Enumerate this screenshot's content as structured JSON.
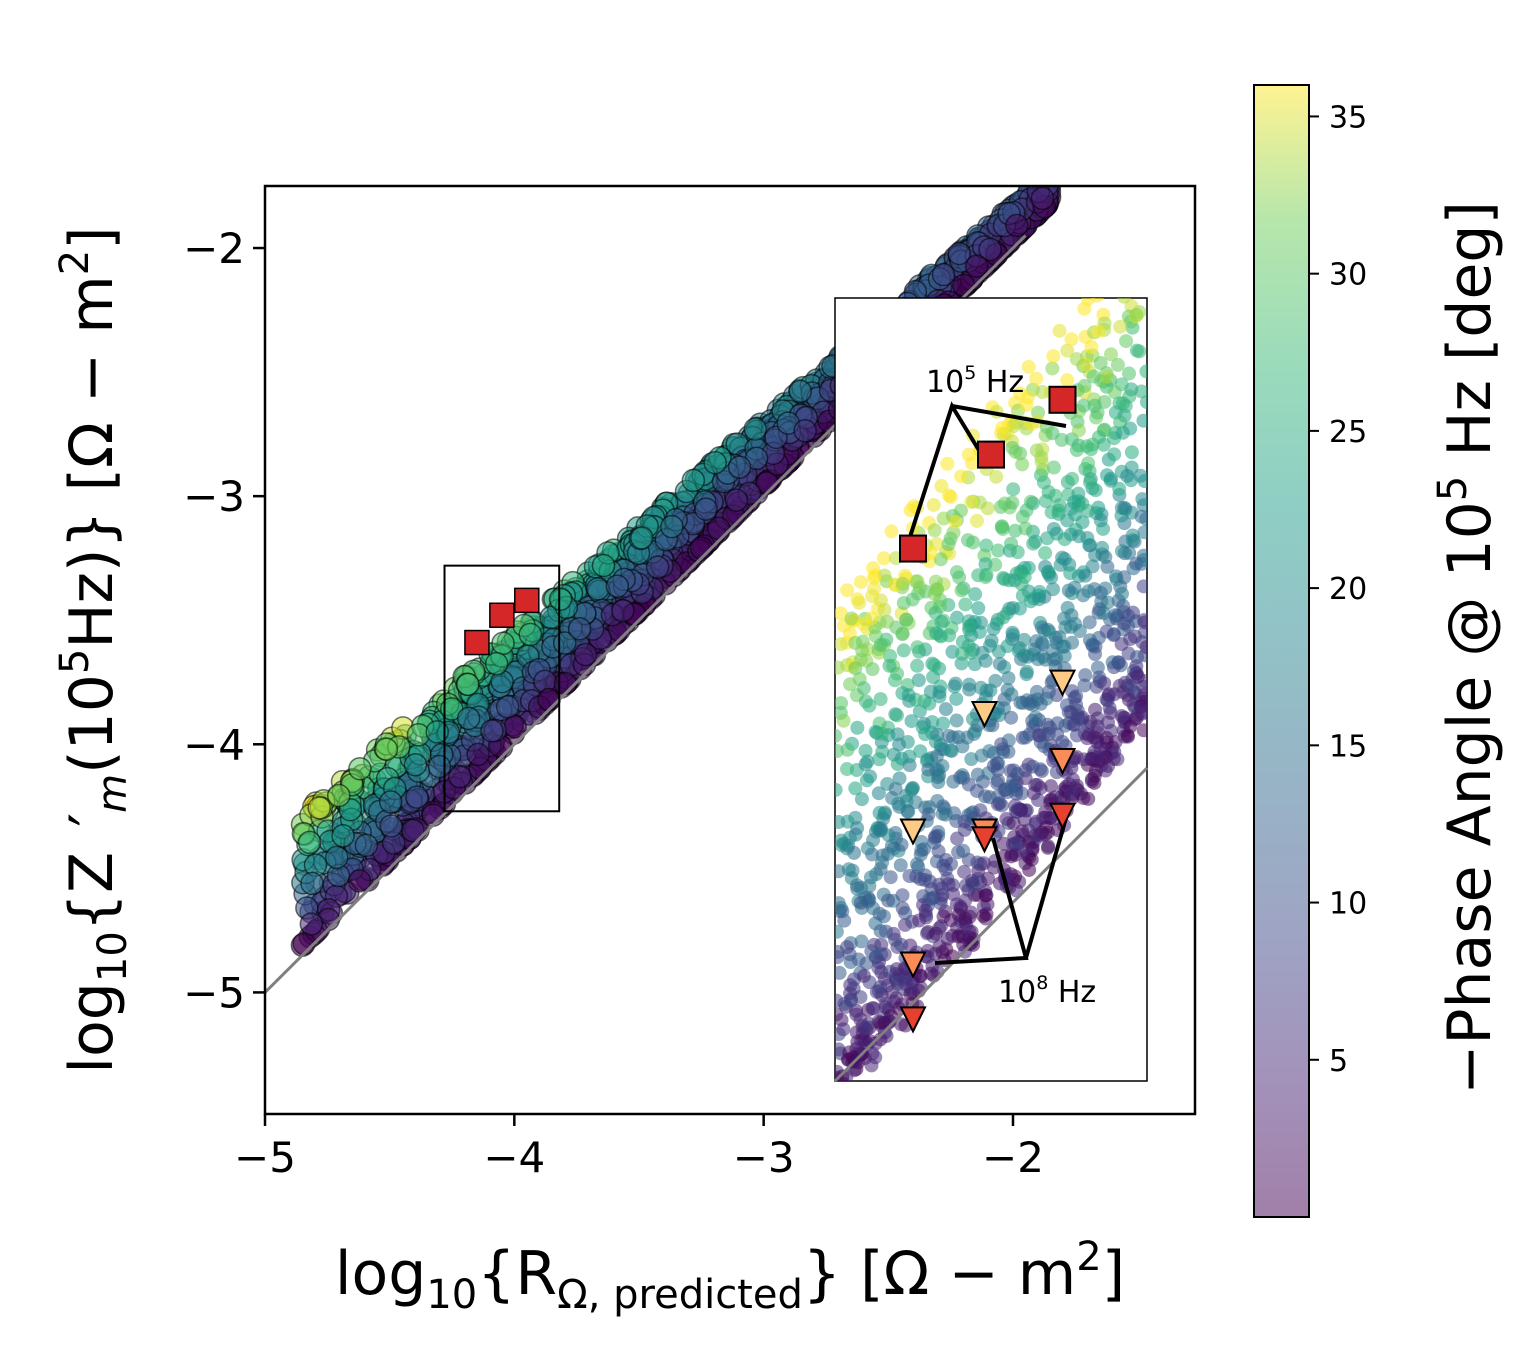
{
  "chart_data": {
    "type": "scatter",
    "title": "",
    "xlabel": {
      "prefix": "log",
      "sub": "10",
      "body": "{R",
      "sub2": "Ω, predicted",
      "suffix": "} [Ω − m",
      "sup": "2",
      "end": "]"
    },
    "ylabel": {
      "prefix": "log",
      "sub": "10",
      "body": "{Z",
      "sub2": "m",
      "mid": "(10",
      "sup1": "5",
      "mid2": "Hz)} [Ω − m",
      "sup": "2",
      "end": "]"
    },
    "xlim": [
      -5,
      -1.27
    ],
    "ylim": [
      -5.49,
      -1.75
    ],
    "xticks": [
      {
        "v": -5,
        "label": "−5"
      },
      {
        "v": -4,
        "label": "−4"
      },
      {
        "v": -3,
        "label": "−3"
      },
      {
        "v": -2,
        "label": "−2"
      }
    ],
    "yticks": [
      {
        "v": -2,
        "label": "−2"
      },
      {
        "v": -3,
        "label": "−3"
      },
      {
        "v": -4,
        "label": "−4"
      },
      {
        "v": -5,
        "label": "−5"
      }
    ],
    "grid": false,
    "colorbar": {
      "label": {
        "prefix": "−Phase Angle @ 10",
        "sup": "5",
        "suffix": " Hz [deg]"
      },
      "range": [
        0,
        36
      ],
      "ticks": [
        {
          "v": 5,
          "label": "5"
        },
        {
          "v": 10,
          "label": "10"
        },
        {
          "v": 15,
          "label": "15"
        },
        {
          "v": 20,
          "label": "20"
        },
        {
          "v": 25,
          "label": "25"
        },
        {
          "v": 30,
          "label": "30"
        },
        {
          "v": 35,
          "label": "35"
        }
      ],
      "colormap": "viridis"
    },
    "reference_line": {
      "x": [
        -5,
        -1.95
      ],
      "y": [
        -5,
        -1.95
      ],
      "color": "#808080"
    },
    "highlight_squares": [
      {
        "x": -4.15,
        "y": -3.59
      },
      {
        "x": -4.05,
        "y": -3.48
      },
      {
        "x": -3.95,
        "y": -3.42
      }
    ],
    "zoom_box_main": {
      "x": [
        -4.28,
        -3.82
      ],
      "y": [
        -4.27,
        -3.28
      ]
    },
    "inset": {
      "xlim": [
        -4.3,
        -3.82
      ],
      "ylim": [
        -4.3,
        -3.3
      ],
      "squares": [
        {
          "x": -4.18,
          "y": -3.62,
          "color": "#d62728"
        },
        {
          "x": -4.06,
          "y": -3.5,
          "color": "#d62728"
        },
        {
          "x": -3.95,
          "y": -3.43,
          "color": "#d62728"
        }
      ],
      "triangles": [
        {
          "x": -4.18,
          "y": -3.98,
          "color": "#fdcb86"
        },
        {
          "x": -4.18,
          "y": -4.15,
          "color": "#fa8c58"
        },
        {
          "x": -4.18,
          "y": -4.22,
          "color": "#e6402e"
        },
        {
          "x": -4.07,
          "y": -3.83,
          "color": "#fdcb86"
        },
        {
          "x": -4.07,
          "y": -3.98,
          "color": "#fa8c58"
        },
        {
          "x": -4.07,
          "y": -3.99,
          "color": "#e6402e"
        },
        {
          "x": -3.95,
          "y": -3.79,
          "color": "#fdcb86"
        },
        {
          "x": -3.95,
          "y": -3.89,
          "color": "#fa8c58"
        },
        {
          "x": -3.95,
          "y": -3.96,
          "color": "#e6402e"
        }
      ],
      "annotation_high": {
        "prefix": "10",
        "sup": "5",
        "suffix": " Hz"
      },
      "annotation_low": {
        "prefix": "10",
        "sup": "8",
        "suffix": " Hz"
      }
    },
    "series": [
      {
        "description_hidden": true,
        "values_generated_from_distribution": true
      }
    ]
  }
}
